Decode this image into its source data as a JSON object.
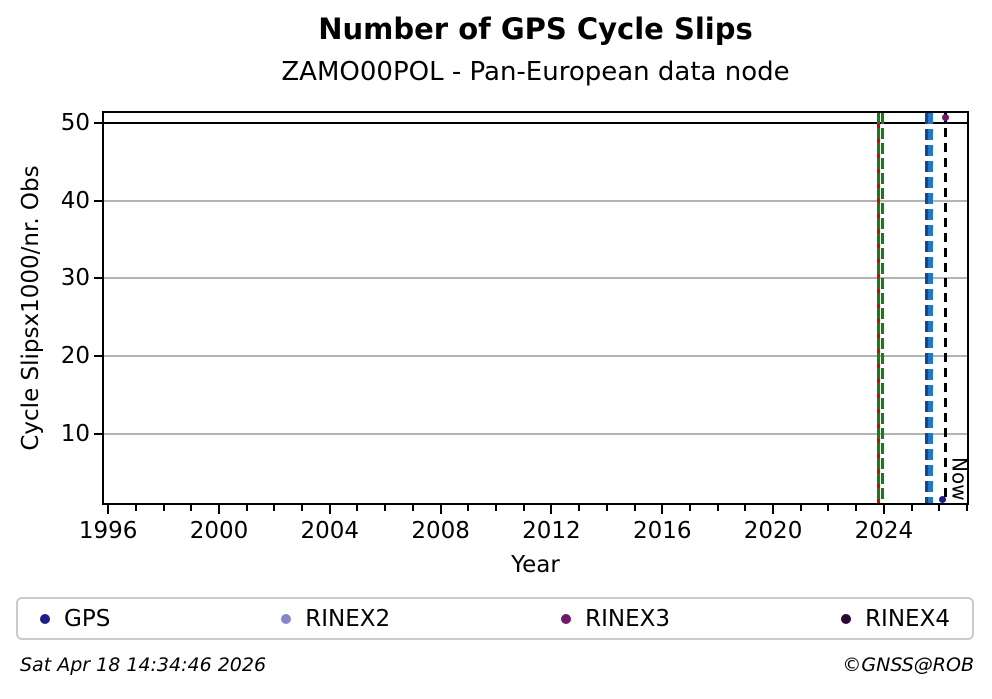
{
  "chart_data": {
    "type": "scatter",
    "title": "Number of GPS Cycle Slips",
    "subtitle": "ZAMO00POL - Pan-European data node",
    "xlabel": "Year",
    "ylabel": "Cycle Slipsx1000/nr. Obs",
    "xlim": [
      1995.85,
      2027.0
    ],
    "ylim": [
      1.1,
      51.3
    ],
    "xticks": [
      1996,
      2000,
      2004,
      2008,
      2012,
      2016,
      2020,
      2024
    ],
    "xminor_step": 1,
    "yticks": [
      10,
      20,
      30,
      40,
      50
    ],
    "grid": "horizontal",
    "grid_color": "#b3b3b3",
    "legend_position": "bottom",
    "hlines": [
      {
        "y": 50,
        "color": "#000000",
        "width": 2.5
      }
    ],
    "vlines": [
      {
        "x": 2023.79,
        "style": "solid",
        "color": "#e00000",
        "width": 3
      },
      {
        "x": 2023.79,
        "style": "dashed",
        "color": "#138013",
        "width": 3,
        "dash": [
          11,
          4
        ]
      },
      {
        "x": 2023.95,
        "style": "dashed",
        "color": "#138013",
        "width": 3.5,
        "dash": [
          11,
          4
        ]
      },
      {
        "x": 2025.53,
        "style": "dashed",
        "color": "#134a85",
        "width": 2.5,
        "dash": [
          11,
          5
        ]
      },
      {
        "x": 2025.67,
        "style": "dashed",
        "color": "#2277c8",
        "width": 5,
        "dash": [
          11,
          5
        ]
      },
      {
        "x": 2026.23,
        "style": "dashed",
        "color": "#000000",
        "width": 2.5,
        "dash": [
          9,
          6
        ]
      }
    ],
    "now_marker": {
      "x": 2026.23,
      "label": "Now"
    },
    "series": [
      {
        "name": "GPS",
        "color": "#1c1c8f",
        "marker_size": 7,
        "points": [
          {
            "x": 2026.13,
            "y": 1.6
          }
        ]
      },
      {
        "name": "RINEX2",
        "color": "#8585cf",
        "marker_size": 7,
        "points": []
      },
      {
        "name": "RINEX3",
        "color": "#70176e",
        "marker_size": 7,
        "points": [
          {
            "x": 2026.23,
            "y": 50.7
          }
        ]
      },
      {
        "name": "RINEX4",
        "color": "#2a0834",
        "marker_size": 7,
        "points": []
      }
    ]
  },
  "legend": {
    "items": [
      {
        "label": "GPS",
        "color": "#1c1c8f"
      },
      {
        "label": "RINEX2",
        "color": "#8585cf"
      },
      {
        "label": "RINEX3",
        "color": "#70176e"
      },
      {
        "label": "RINEX4",
        "color": "#2a0834"
      }
    ]
  },
  "footer": {
    "timestamp": "Sat Apr 18 14:34:46 2026",
    "credit": "©GNSS@ROB"
  }
}
